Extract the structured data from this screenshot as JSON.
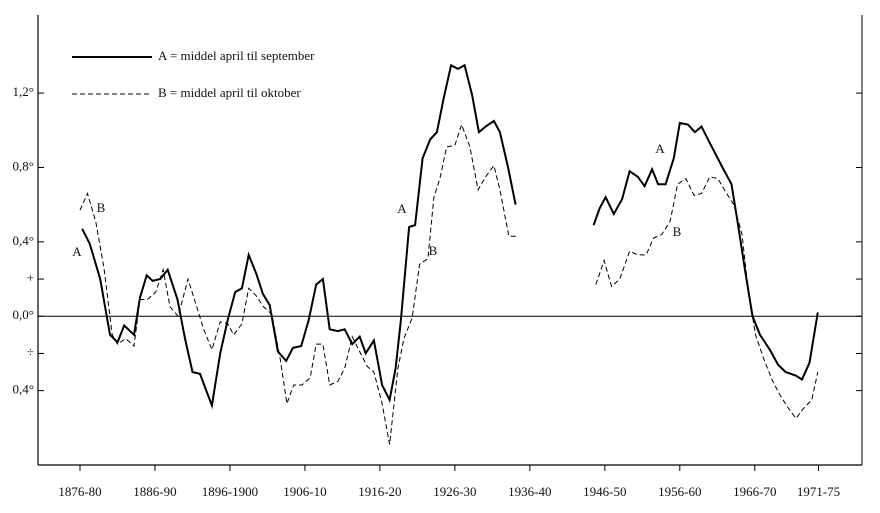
{
  "chart_data": {
    "type": "line",
    "series": [
      {
        "name": "A = middel april til september",
        "color": "#000000",
        "dash": false,
        "x": [
          1878.3,
          1879.3,
          1880.7,
          1882,
          1883,
          1883.9,
          1885.2,
          1886,
          1886.9,
          1887.7,
          1888.7,
          1889.7,
          1891,
          1892,
          1893,
          1894,
          1895.6,
          1896.7,
          1897.7,
          1898.7,
          1899.6,
          1900.5,
          1901.5,
          1902.4,
          1903.3,
          1904.4,
          1905.5,
          1906.4,
          1907.5,
          1908.5,
          1909.5,
          1910.4,
          1911.3,
          1912.4,
          1913.3,
          1914.3,
          1915.3,
          1916.1,
          1917.2,
          1918.3,
          1919.3,
          1920.1,
          1920.8,
          1921.9,
          1922.7,
          1923.7,
          1924.7,
          1925.6,
          1926.5,
          1927.5,
          1928.4,
          1929.3,
          1930.3,
          1931.2,
          1932.1,
          1933.2,
          1934,
          1935.1,
          1936.1,
          1941,
          1946.5,
          1947.3,
          1948.1,
          1949.2,
          1950.3,
          1951.3,
          1952.4,
          1953.3,
          1954.3,
          1955.1,
          1956.1,
          1957.2,
          1958,
          1959.1,
          1960,
          1960.9,
          1961.9,
          1962.8,
          1963.7,
          1964.9,
          1965.7,
          1966.7,
          1967.7,
          1968.7,
          1970,
          1971.1,
          1972.1,
          1973.5,
          1974.3,
          1975.3,
          1976.4
        ],
        "values": [
          0.47,
          0.39,
          0.2,
          -0.1,
          -0.14,
          -0.05,
          -0.1,
          0.1,
          0.22,
          0.19,
          0.2,
          0.25,
          0.09,
          -0.12,
          -0.3,
          -0.31,
          -0.48,
          -0.2,
          -0.02,
          0.13,
          0.15,
          0.33,
          0.23,
          0.12,
          0.06,
          -0.19,
          -0.24,
          -0.17,
          -0.16,
          -0.02,
          0.17,
          0.2,
          -0.07,
          -0.08,
          -0.07,
          -0.15,
          -0.11,
          -0.2,
          -0.13,
          -0.37,
          -0.45,
          -0.28,
          -0.02,
          0.48,
          0.49,
          0.85,
          0.95,
          0.99,
          1.17,
          1.35,
          1.33,
          1.35,
          1.19,
          0.99,
          1.02,
          1.05,
          0.99,
          0.8,
          0.6,
          null,
          0.49,
          0.58,
          0.64,
          0.55,
          0.63,
          0.78,
          0.75,
          0.7,
          0.79,
          0.71,
          0.71,
          0.85,
          1.04,
          1.03,
          0.99,
          1.02,
          0.94,
          0.87,
          0.8,
          0.71,
          0.51,
          0.25,
          0,
          -0.1,
          -0.18,
          -0.26,
          -0.3,
          -0.32,
          -0.34,
          -0.25,
          0.02
        ]
      },
      {
        "name": "B = middel april til oktober",
        "color": "#000000",
        "dash": true,
        "x": [
          1878,
          1879,
          1880.1,
          1881.2,
          1882.3,
          1883,
          1884.1,
          1885.2,
          1886,
          1887,
          1888.1,
          1889.1,
          1890,
          1891.1,
          1892.4,
          1893.5,
          1894.5,
          1895.6,
          1896.7,
          1897.7,
          1898.5,
          1899.6,
          1900.5,
          1901.5,
          1902.5,
          1903.6,
          1904.7,
          1905.6,
          1906.5,
          1907.6,
          1908.7,
          1909.5,
          1910.4,
          1911.3,
          1912.4,
          1913.3,
          1914.3,
          1915.3,
          1916.3,
          1917.2,
          1918.3,
          1919.3,
          1920.4,
          1921.2,
          1922.3,
          1923.3,
          1924.4,
          1925.2,
          1926,
          1926.9,
          1928,
          1928.9,
          1930,
          1931.1,
          1932.1,
          1933.2,
          1934,
          1935.2,
          1936.4,
          1941,
          1946.8,
          1947.9,
          1948.9,
          1950,
          1951.3,
          1952.4,
          1953.5,
          1954.5,
          1955.6,
          1956.7,
          1957.7,
          1958.8,
          1959.9,
          1960.9,
          1962,
          1963.1,
          1964.1,
          1965.2,
          1966.3,
          1967.1,
          1968.1,
          1969.2,
          1970.3,
          1971.3,
          1972.4,
          1973.5,
          1974.4,
          1975.6,
          1976.4
        ],
        "values": [
          0.57,
          0.66,
          0.51,
          0.26,
          -0.1,
          -0.15,
          -0.12,
          -0.16,
          0.09,
          0.09,
          0.13,
          0.25,
          0.05,
          0,
          0.2,
          0.06,
          -0.07,
          -0.18,
          -0.03,
          -0.04,
          -0.1,
          -0.04,
          0.15,
          0.11,
          0.05,
          0.01,
          -0.23,
          -0.47,
          -0.37,
          -0.37,
          -0.33,
          -0.15,
          -0.15,
          -0.37,
          -0.35,
          -0.28,
          -0.11,
          -0.19,
          -0.27,
          -0.3,
          -0.47,
          -0.69,
          -0.28,
          -0.12,
          -0.01,
          0.28,
          0.31,
          0.64,
          0.74,
          0.91,
          0.92,
          1.03,
          0.91,
          0.68,
          0.75,
          0.81,
          0.68,
          0.43,
          0.43,
          null,
          0.17,
          0.3,
          0.16,
          0.2,
          0.35,
          0.33,
          0.33,
          0.42,
          0.44,
          0.51,
          0.71,
          0.74,
          0.65,
          0.66,
          0.75,
          0.74,
          0.67,
          0.6,
          0.44,
          0.15,
          -0.1,
          -0.23,
          -0.34,
          -0.42,
          -0.49,
          -0.55,
          -0.5,
          -0.45,
          -0.3
        ]
      }
    ],
    "annotations": [
      "A",
      "B",
      "A",
      "B",
      "A",
      "B"
    ],
    "xlim": [
      1872.4,
      1982.3
    ],
    "xticks": [
      {
        "value": 1878,
        "label": "1876-80"
      },
      {
        "value": 1888,
        "label": "1886-90"
      },
      {
        "value": 1898,
        "label": "1896-1900"
      },
      {
        "value": 1908,
        "label": "1906-10"
      },
      {
        "value": 1918,
        "label": "1916-20"
      },
      {
        "value": 1928,
        "label": "1926-30"
      },
      {
        "value": 1938,
        "label": "1936-40"
      },
      {
        "value": 1948,
        "label": "1946-50"
      },
      {
        "value": 1958,
        "label": "1956-60"
      },
      {
        "value": 1968,
        "label": "1966-70"
      },
      {
        "value": 1976.5,
        "label": "1971-75"
      }
    ],
    "ylim": [
      -0.8,
      1.62
    ],
    "yticks": [
      {
        "value": 1.2,
        "label": "1,2°"
      },
      {
        "value": 0.8,
        "label": "0,8°"
      },
      {
        "value": 0.4,
        "label": "0,4°"
      },
      {
        "value": 0.2,
        "label": "+"
      },
      {
        "value": 0,
        "label": "0,0°"
      },
      {
        "value": -0.2,
        "label": "÷"
      },
      {
        "value": -0.4,
        "label": "0,4°"
      }
    ]
  }
}
